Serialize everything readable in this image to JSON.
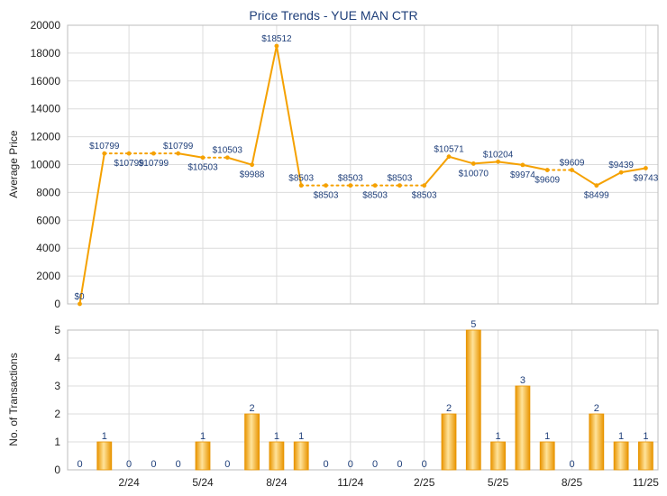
{
  "title": "Price Trends - YUE MAN CTR",
  "colors": {
    "line": "#f5a100",
    "bar_dark": "#e89400",
    "bar_light": "#ffe39a",
    "text": "#1f3f7a"
  },
  "chart_data": [
    {
      "type": "line",
      "ylabel": "Average Price",
      "ylim": [
        0,
        20000
      ],
      "yticks": [
        "0",
        "2000",
        "4000",
        "6000",
        "8000",
        "10000",
        "12000",
        "14000",
        "16000",
        "18000",
        "20000"
      ],
      "grid": true,
      "x": [
        "2023-12",
        "2024-01",
        "2024-02",
        "2024-03",
        "2024-04",
        "2024-05",
        "2024-06",
        "2024-07",
        "2024-08",
        "2024-09",
        "2024-10",
        "2024-11",
        "2024-12",
        "2025-01",
        "2025-02",
        "2025-03",
        "2025-04",
        "2025-05",
        "2025-06",
        "2025-07",
        "2025-08",
        "2025-09",
        "2025-10",
        "2025-11"
      ],
      "values": [
        0,
        10799,
        10799,
        10799,
        10799,
        10503,
        10503,
        9988,
        18512,
        8503,
        8503,
        8503,
        8503,
        8503,
        8503,
        10571,
        10070,
        10204,
        9974,
        9609,
        9609,
        8499,
        9439,
        9743
      ],
      "labels": [
        "$0",
        "$10799",
        "$10799",
        "$10799",
        "$10799",
        "$10503",
        "$10503",
        "$9988",
        "$18512",
        "$8503",
        "$8503",
        "$8503",
        "$8503",
        "$8503",
        "$8503",
        "$10571",
        "$10070",
        "$10204",
        "$9974",
        "$9609",
        "$9609",
        "$8499",
        "$9439",
        "$9743"
      ],
      "dotted_segments_after_index": [
        1,
        2,
        3,
        5,
        9,
        10,
        11,
        12,
        13,
        19
      ]
    },
    {
      "type": "bar",
      "ylabel": "No. of Transactions",
      "ylim": [
        0,
        5
      ],
      "yticks": [
        "0",
        "1",
        "2",
        "3",
        "4",
        "5"
      ],
      "grid": true,
      "x": [
        "2023-12",
        "2024-01",
        "2024-02",
        "2024-03",
        "2024-04",
        "2024-05",
        "2024-06",
        "2024-07",
        "2024-08",
        "2024-09",
        "2024-10",
        "2024-11",
        "2024-12",
        "2025-01",
        "2025-02",
        "2025-03",
        "2025-04",
        "2025-05",
        "2025-06",
        "2025-07",
        "2025-08",
        "2025-09",
        "2025-10",
        "2025-11"
      ],
      "values": [
        0,
        1,
        0,
        0,
        0,
        1,
        0,
        2,
        1,
        1,
        0,
        0,
        0,
        0,
        0,
        2,
        5,
        1,
        3,
        1,
        0,
        2,
        1,
        1
      ],
      "xtick_labels": [
        {
          "index": 2,
          "label": "2/24"
        },
        {
          "index": 5,
          "label": "5/24"
        },
        {
          "index": 8,
          "label": "8/24"
        },
        {
          "index": 11,
          "label": "11/24"
        },
        {
          "index": 14,
          "label": "2/25"
        },
        {
          "index": 17,
          "label": "5/25"
        },
        {
          "index": 20,
          "label": "8/25"
        },
        {
          "index": 23,
          "label": "11/25"
        }
      ]
    }
  ]
}
